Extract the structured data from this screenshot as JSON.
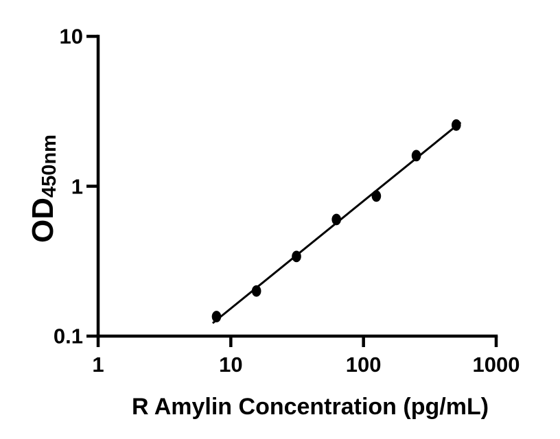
{
  "figure": {
    "background_color": "#ffffff",
    "axis_color": "#000000"
  },
  "chart_data": {
    "type": "scatter",
    "title": "",
    "xlabel": "R Amylin Concentration (pg/mL)",
    "ylabel_main": "OD",
    "ylabel_subscript": "450nm",
    "x_scale": "log",
    "y_scale": "log",
    "xlim": [
      1,
      1000
    ],
    "ylim": [
      0.1,
      10
    ],
    "grid": "off",
    "legend": "none",
    "x_ticks": [
      {
        "value": 1,
        "label": "1"
      },
      {
        "value": 10,
        "label": "10"
      },
      {
        "value": 100,
        "label": "100"
      },
      {
        "value": 1000,
        "label": "1000"
      }
    ],
    "y_ticks": [
      {
        "value": 0.1,
        "label": "0.1"
      },
      {
        "value": 1,
        "label": "1"
      },
      {
        "value": 10,
        "label": "10"
      }
    ],
    "points": [
      {
        "x": 7.8,
        "y": 0.135
      },
      {
        "x": 15.6,
        "y": 0.2
      },
      {
        "x": 31.25,
        "y": 0.34
      },
      {
        "x": 62.5,
        "y": 0.6
      },
      {
        "x": 125,
        "y": 0.86
      },
      {
        "x": 250,
        "y": 1.6
      },
      {
        "x": 500,
        "y": 2.56
      }
    ],
    "trend_line": {
      "x1": 7.3,
      "y1": 0.122,
      "x2": 540,
      "y2": 2.67
    },
    "marker_color": "#000000",
    "line_color": "#000000"
  }
}
